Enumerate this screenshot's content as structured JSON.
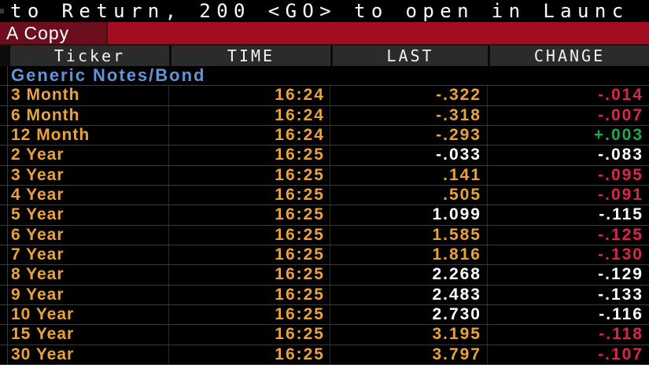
{
  "topbar": {
    "text": "to Return, 200 <GO> to open in Launc"
  },
  "tab_bar": {
    "active_tab": "A Copy"
  },
  "table": {
    "columns": [
      "Ticker",
      "TIME",
      "LAST",
      "CHANGE"
    ],
    "section": "Generic Notes/Bond",
    "rows": [
      {
        "ticker": "3 Month",
        "time": "16:24",
        "last": "-.322",
        "change": "-.014",
        "last_color": "orange",
        "change_color": "red"
      },
      {
        "ticker": "6 Month",
        "time": "16:24",
        "last": "-.318",
        "change": "-.007",
        "last_color": "orange",
        "change_color": "red"
      },
      {
        "ticker": "12 Month",
        "time": "16:24",
        "last": "-.293",
        "change": "+.003",
        "last_color": "orange",
        "change_color": "green"
      },
      {
        "ticker": "2 Year",
        "time": "16:25",
        "last": "-.033",
        "change": "-.083",
        "last_color": "white",
        "change_color": "white"
      },
      {
        "ticker": "3 Year",
        "time": "16:25",
        "last": ".141",
        "change": "-.095",
        "last_color": "orange",
        "change_color": "red"
      },
      {
        "ticker": "4 Year",
        "time": "16:25",
        "last": ".505",
        "change": "-.091",
        "last_color": "orange",
        "change_color": "red"
      },
      {
        "ticker": "5 Year",
        "time": "16:25",
        "last": "1.099",
        "change": "-.115",
        "last_color": "white",
        "change_color": "white"
      },
      {
        "ticker": "6 Year",
        "time": "16:25",
        "last": "1.585",
        "change": "-.125",
        "last_color": "orange",
        "change_color": "red"
      },
      {
        "ticker": "7 Year",
        "time": "16:25",
        "last": "1.816",
        "change": "-.130",
        "last_color": "orange",
        "change_color": "red"
      },
      {
        "ticker": "8 Year",
        "time": "16:25",
        "last": "2.268",
        "change": "-.129",
        "last_color": "white",
        "change_color": "white"
      },
      {
        "ticker": "9 Year",
        "time": "16:25",
        "last": "2.483",
        "change": "-.133",
        "last_color": "white",
        "change_color": "white"
      },
      {
        "ticker": "10 Year",
        "time": "16:25",
        "last": "2.730",
        "change": "-.116",
        "last_color": "white",
        "change_color": "white"
      },
      {
        "ticker": "15 Year",
        "time": "16:25",
        "last": "3.195",
        "change": "-.118",
        "last_color": "orange",
        "change_color": "red"
      },
      {
        "ticker": "30 Year",
        "time": "16:25",
        "last": "3.797",
        "change": "-.107",
        "last_color": "orange",
        "change_color": "red"
      }
    ]
  },
  "colors": {
    "orange": "#e8a33c",
    "red": "#d5294a",
    "green": "#22a94f",
    "blue": "#6295d5",
    "white": "#ffffff",
    "header_bg": "#2b2b2b",
    "bar_red": "#a30d22",
    "tab_red": "#6d0e1f"
  }
}
